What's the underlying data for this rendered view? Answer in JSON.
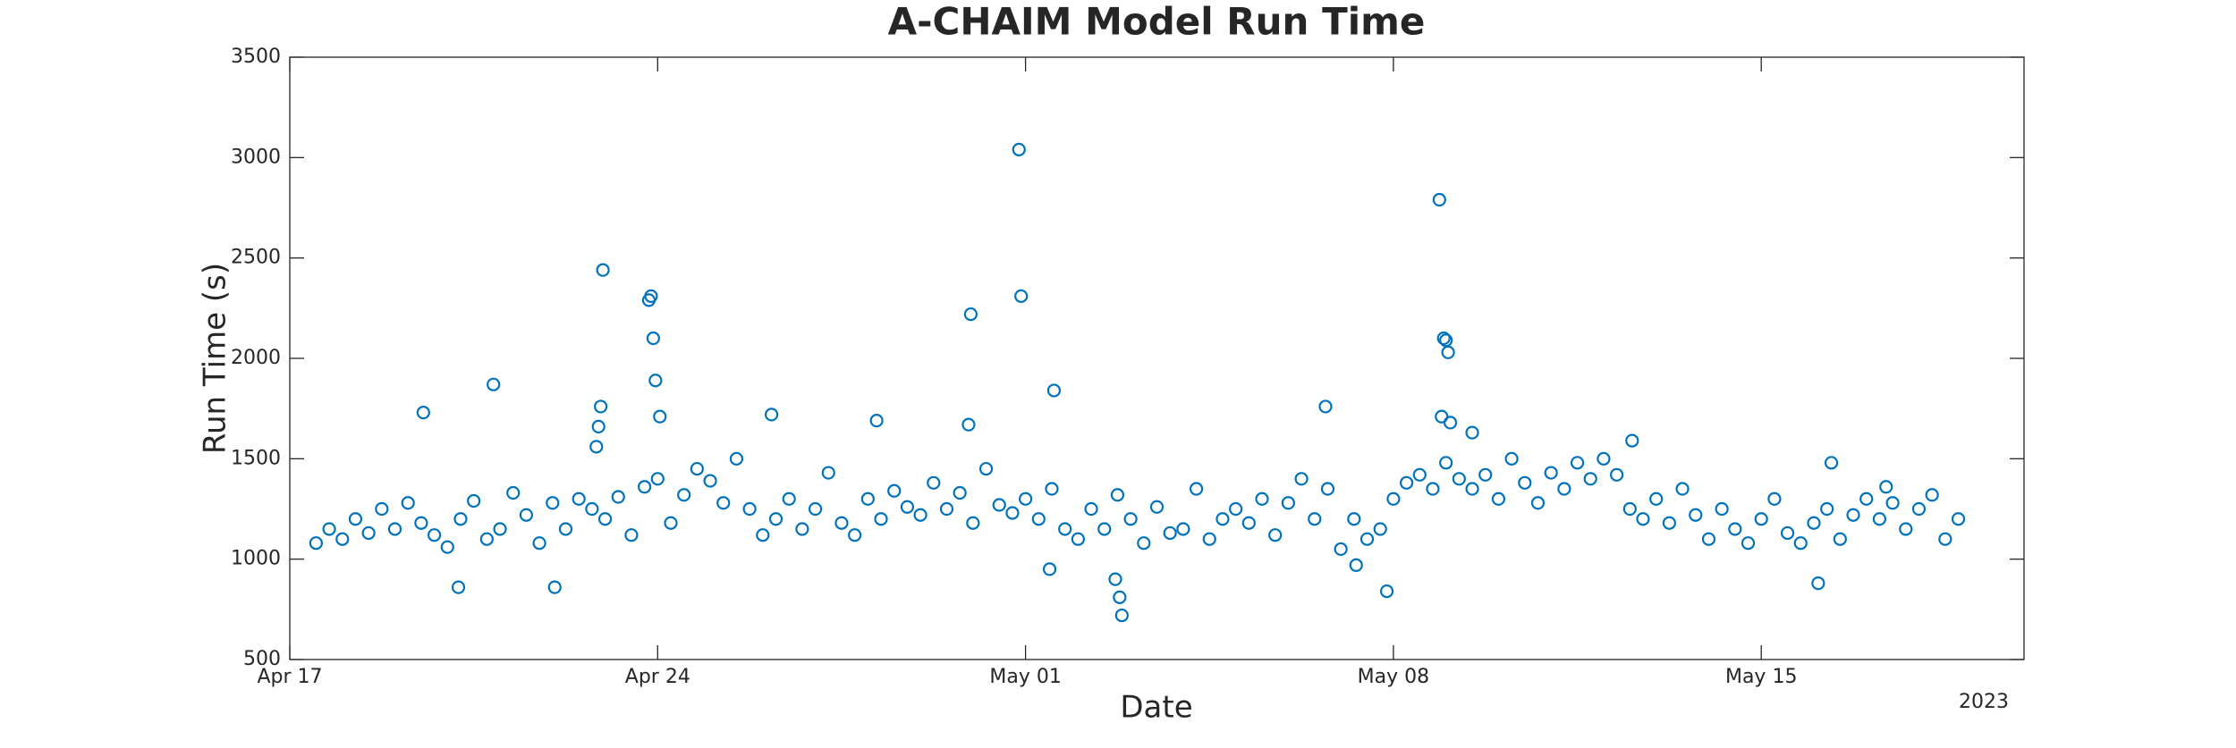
{
  "chart_data": {
    "type": "scatter",
    "title": "A-CHAIM Model Run Time",
    "x_label": "Date",
    "y_label": "Run Time (s)",
    "x_year_label": "2023",
    "color": "#0072bd",
    "xlim": [
      "2023-04-17",
      "2023-05-20"
    ],
    "xticks": [
      {
        "value": "2023-04-17",
        "label": "Apr 17"
      },
      {
        "value": "2023-04-24",
        "label": "Apr 24"
      },
      {
        "value": "2023-05-01",
        "label": "May 01"
      },
      {
        "value": "2023-05-08",
        "label": "May 08"
      },
      {
        "value": "2023-05-15",
        "label": "May 15"
      }
    ],
    "ylim": [
      500,
      3500
    ],
    "yticks": [
      500,
      1000,
      1500,
      2000,
      2500,
      3000,
      3500
    ],
    "x": [
      "2023-04-17T12:00",
      "2023-04-17T18:00",
      "2023-04-18T00:00",
      "2023-04-18T06:00",
      "2023-04-18T12:00",
      "2023-04-18T18:00",
      "2023-04-19T00:00",
      "2023-04-19T06:00",
      "2023-04-19T12:00",
      "2023-04-19T18:00",
      "2023-04-20T00:00",
      "2023-04-20T06:00",
      "2023-04-20T12:00",
      "2023-04-20T18:00",
      "2023-04-21T00:00",
      "2023-04-21T06:00",
      "2023-04-21T12:00",
      "2023-04-21T18:00",
      "2023-04-22T00:00",
      "2023-04-22T06:00",
      "2023-04-22T12:00",
      "2023-04-22T18:00",
      "2023-04-23T00:00",
      "2023-04-23T06:00",
      "2023-04-23T12:00",
      "2023-04-23T18:00",
      "2023-04-24T00:00",
      "2023-04-24T06:00",
      "2023-04-24T12:00",
      "2023-04-24T18:00",
      "2023-04-25T00:00",
      "2023-04-25T06:00",
      "2023-04-25T12:00",
      "2023-04-25T18:00",
      "2023-04-26T00:00",
      "2023-04-26T06:00",
      "2023-04-26T12:00",
      "2023-04-26T18:00",
      "2023-04-27T00:00",
      "2023-04-27T06:00",
      "2023-04-27T12:00",
      "2023-04-27T18:00",
      "2023-04-28T00:00",
      "2023-04-28T06:00",
      "2023-04-28T12:00",
      "2023-04-28T18:00",
      "2023-04-29T00:00",
      "2023-04-29T06:00",
      "2023-04-29T12:00",
      "2023-04-29T18:00",
      "2023-04-30T00:00",
      "2023-04-30T06:00",
      "2023-04-30T12:00",
      "2023-04-30T18:00",
      "2023-05-01T00:00",
      "2023-05-01T06:00",
      "2023-05-01T12:00",
      "2023-05-01T18:00",
      "2023-05-02T00:00",
      "2023-05-02T06:00",
      "2023-05-02T12:00",
      "2023-05-02T18:00",
      "2023-05-03T00:00",
      "2023-05-03T06:00",
      "2023-05-03T12:00",
      "2023-05-03T18:00",
      "2023-05-04T00:00",
      "2023-05-04T06:00",
      "2023-05-04T12:00",
      "2023-05-04T18:00",
      "2023-05-05T00:00",
      "2023-05-05T06:00",
      "2023-05-05T12:00",
      "2023-05-05T18:00",
      "2023-05-06T00:00",
      "2023-05-06T06:00",
      "2023-05-06T12:00",
      "2023-05-06T18:00",
      "2023-05-07T00:00",
      "2023-05-07T06:00",
      "2023-05-07T12:00",
      "2023-05-07T18:00",
      "2023-05-08T00:00",
      "2023-05-08T06:00",
      "2023-05-08T12:00",
      "2023-05-08T18:00",
      "2023-05-09T00:00",
      "2023-05-09T06:00",
      "2023-05-09T12:00",
      "2023-05-09T18:00",
      "2023-05-10T00:00",
      "2023-05-10T06:00",
      "2023-05-10T12:00",
      "2023-05-10T18:00",
      "2023-05-11T00:00",
      "2023-05-11T06:00",
      "2023-05-11T12:00",
      "2023-05-11T18:00",
      "2023-05-12T00:00",
      "2023-05-12T06:00",
      "2023-05-12T12:00",
      "2023-05-12T18:00",
      "2023-05-13T00:00",
      "2023-05-13T06:00",
      "2023-05-13T12:00",
      "2023-05-13T18:00",
      "2023-05-14T00:00",
      "2023-05-14T06:00",
      "2023-05-14T12:00",
      "2023-05-14T18:00",
      "2023-05-15T00:00",
      "2023-05-15T06:00",
      "2023-05-15T12:00",
      "2023-05-15T18:00",
      "2023-05-16T00:00",
      "2023-05-16T06:00",
      "2023-05-16T12:00",
      "2023-05-16T18:00",
      "2023-05-17T00:00",
      "2023-05-17T06:00",
      "2023-05-17T12:00",
      "2023-05-17T18:00",
      "2023-05-18T00:00",
      "2023-05-18T06:00",
      "2023-05-18T12:00",
      "2023-05-18T18:00",
      "2023-04-19T13:00",
      "2023-04-20T21:00",
      "2023-04-20T05:00",
      "2023-04-22T01:00",
      "2023-04-22T23:00",
      "2023-04-22T22:00",
      "2023-04-22T21:00",
      "2023-04-22T20:00",
      "2023-04-23T21:00",
      "2023-04-23T20:00",
      "2023-04-23T22:00",
      "2023-04-23T23:00",
      "2023-04-24T01:00",
      "2023-04-26T04:00",
      "2023-04-28T04:00",
      "2023-04-29T23:00",
      "2023-04-29T22:00",
      "2023-04-30T21:00",
      "2023-04-30T22:00",
      "2023-05-01T13:00",
      "2023-05-01T11:00",
      "2023-05-02T20:00",
      "2023-05-02T19:00",
      "2023-05-02T17:00",
      "2023-05-06T17:00",
      "2023-05-07T07:00",
      "2023-05-07T21:00",
      "2023-05-08T21:00",
      "2023-05-08T23:00",
      "2023-05-09T00:00",
      "2023-05-09T01:00",
      "2023-05-08T22:00",
      "2023-05-09T02:00",
      "2023-05-09T12:00",
      "2023-05-12T13:00",
      "2023-05-16T08:00",
      "2023-05-16T02:00",
      "2023-05-17T09:00"
    ],
    "values": [
      1080,
      1150,
      1100,
      1200,
      1130,
      1250,
      1150,
      1280,
      1180,
      1120,
      1060,
      1200,
      1290,
      1100,
      1150,
      1330,
      1220,
      1080,
      1280,
      1150,
      1300,
      1250,
      1200,
      1310,
      1120,
      1360,
      1400,
      1180,
      1320,
      1450,
      1390,
      1280,
      1500,
      1250,
      1120,
      1200,
      1300,
      1150,
      1250,
      1430,
      1180,
      1120,
      1300,
      1200,
      1340,
      1260,
      1220,
      1380,
      1250,
      1330,
      1180,
      1450,
      1270,
      1230,
      1300,
      1200,
      1350,
      1150,
      1100,
      1250,
      1150,
      1320,
      1200,
      1080,
      1260,
      1130,
      1150,
      1350,
      1100,
      1200,
      1250,
      1180,
      1300,
      1120,
      1280,
      1400,
      1200,
      1350,
      1050,
      1200,
      1100,
      1150,
      1300,
      1380,
      1420,
      1350,
      1480,
      1400,
      1350,
      1420,
      1300,
      1500,
      1380,
      1280,
      1430,
      1350,
      1480,
      1400,
      1500,
      1420,
      1250,
      1200,
      1300,
      1180,
      1350,
      1220,
      1100,
      1250,
      1150,
      1080,
      1200,
      1300,
      1130,
      1080,
      1180,
      1250,
      1100,
      1220,
      1300,
      1200,
      1280,
      1150,
      1250,
      1320,
      1100,
      1200,
      1730,
      1870,
      860,
      860,
      2440,
      1760,
      1660,
      1560,
      2310,
      2290,
      2100,
      1890,
      1710,
      1720,
      1690,
      2220,
      1670,
      3040,
      2310,
      1840,
      950,
      720,
      810,
      900,
      1760,
      970,
      840,
      2790,
      2100,
      2090,
      2030,
      1710,
      1680,
      1630,
      1590,
      1480,
      880,
      1360
    ]
  }
}
